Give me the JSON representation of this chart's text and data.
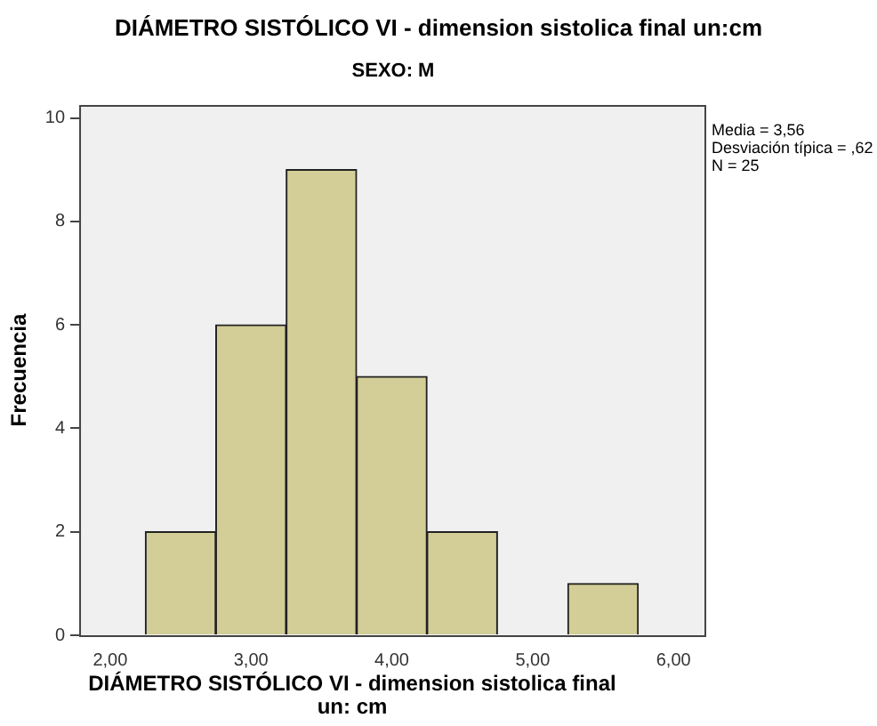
{
  "chart_data": {
    "type": "histogram",
    "title": "DIÁMETRO SISTÓLICO VI - dimension sistolica final un:cm",
    "subtitle": "SEXO: M",
    "xlabel": "DIÁMETRO SISTÓLICO VI - dimension sistolica final un: cm",
    "ylabel": "Frecuencia",
    "bins": [
      2.25,
      2.75,
      3.25,
      3.75,
      4.25,
      4.75,
      5.25,
      5.75
    ],
    "values": [
      2,
      6,
      9,
      5,
      2,
      0,
      1
    ],
    "color": "#d3ce97",
    "xlim": [
      1.78,
      6.22
    ],
    "xticks": [
      {
        "value": 2,
        "label": "2,00"
      },
      {
        "value": 3,
        "label": "3,00"
      },
      {
        "value": 4,
        "label": "4,00"
      },
      {
        "value": 5,
        "label": "5,00"
      },
      {
        "value": 6,
        "label": "6,00"
      }
    ],
    "ylim": [
      0,
      10.25
    ],
    "yticks": [
      0,
      2,
      4,
      6,
      8,
      10
    ],
    "grid": false,
    "legend": false,
    "annotations": [
      "Media = 3,56",
      "Desviación típica = ,62",
      "N = 25"
    ]
  }
}
